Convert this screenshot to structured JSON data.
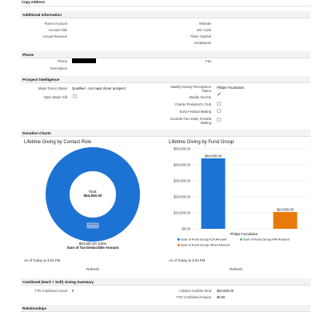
{
  "toolbar": {
    "copy_address_label": "Copy Address"
  },
  "additional_info": {
    "title": "Additional Information",
    "left_fields": [
      {
        "label": "Parent Account",
        "value": ""
      },
      {
        "label": "Account Site",
        "value": ""
      },
      {
        "label": "Annual Revenue",
        "value": ""
      }
    ],
    "right_fields": [
      {
        "label": "Website",
        "value": ""
      },
      {
        "label": "SIC Code",
        "value": ""
      },
      {
        "label": "Ticker Symbol",
        "value": ""
      },
      {
        "label": "Employees",
        "value": ""
      }
    ]
  },
  "phone": {
    "title": "Phone",
    "phone_label": "Phone",
    "description_label": "Description",
    "fax_label": "Fax"
  },
  "prospect": {
    "title": "Prospect Intelligence",
    "major_donor_status_label": "Major Donor Status",
    "major_donor_status_value": "Qualified - not major donor prospect",
    "open_major_gift_label": "Open Major Gift",
    "recognition_name_label": "Maddy Society Recognition Name",
    "recognition_name_value": "Philips Foundation",
    "maddy_society_label": "Maddy Society",
    "charter_presidents_club_label": "Charter President's Club",
    "early_festival_mailing_label": "Early Festival Mailing",
    "exclude_early_festival_label": "Exclude from Early Festival Mailing"
  },
  "donation_charts": {
    "title": "Donation Charts",
    "as_of": "As of Today at 3:53 PM",
    "refresh_label": "Refresh"
  },
  "chart_data": [
    {
      "type": "pie",
      "title": "Lifetime Giving by Contact Role",
      "categories": [
        "Donor"
      ],
      "values": [
        54500
      ],
      "center_label": "Total:",
      "center_value": "$54,500.00",
      "slice_label": "Donor",
      "value_label": "$54,500.00  100%",
      "legend_caption": "Sum of Tax-Deductible Amount",
      "colors": [
        "#1d73d3"
      ]
    },
    {
      "type": "bar",
      "title": "Lifetime Giving by Fund Group",
      "categories": [
        "Philips Foundation"
      ],
      "series": [
        {
          "name": "Sum of Fund Group ICA Amount",
          "values": [
            44000
          ],
          "color": "#1d73d3",
          "label": "$44,000.00"
        },
        {
          "name": "Sum of Fund Group IPR Amount",
          "values": [
            0
          ],
          "color": "#4caf50",
          "label": ""
        },
        {
          "name": "Sum of Fund Group Other Amount",
          "values": [
            10500
          ],
          "color": "#e87a0c",
          "label": "$10,500.00"
        }
      ],
      "yticks": [
        "$50,000.00",
        "$40,000.00",
        "$30,000.00",
        "$20,000.00",
        "$10,000.00",
        "$0.00"
      ],
      "ylim": [
        0,
        50000
      ]
    }
  ],
  "combined": {
    "title": "Combined (Hard + Soft) Giving Summary",
    "ytd_count_label": "YTD Combined Count",
    "ytd_count_value": "0",
    "lifetime_label": "Lifetime Cash/in-Kind",
    "lifetime_value": "$54,500.00",
    "ytd_amount_label": "YTD Combined Amount",
    "ytd_amount_value": "$0.00"
  },
  "relationships": {
    "title": "Relationships"
  }
}
